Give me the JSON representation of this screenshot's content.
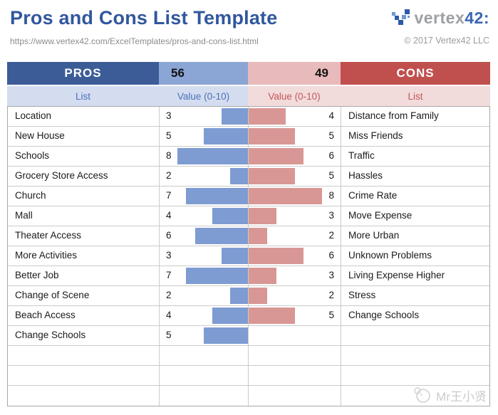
{
  "header": {
    "title": "Pros and Cons List Template",
    "url": "https://www.vertex42.com/ExcelTemplates/pros-and-cons-list.html",
    "logo": {
      "brand_gray": "vertex",
      "brand_blue": "42:"
    },
    "copyright": "© 2017 Vertex42 LLC"
  },
  "table": {
    "pros_header": "PROS",
    "pros_total": "56",
    "cons_total": "49",
    "cons_header": "CONS",
    "pros_list_label": "List",
    "pros_value_label": "Value (0-10)",
    "cons_value_label": "Value (0-10)",
    "cons_list_label": "List",
    "max_value": 10,
    "rows": [
      {
        "pro": "Location",
        "pro_value": 3,
        "con_value": 4,
        "con": "Distance from Family"
      },
      {
        "pro": "New House",
        "pro_value": 5,
        "con_value": 5,
        "con": "Miss Friends"
      },
      {
        "pro": "Schools",
        "pro_value": 8,
        "con_value": 6,
        "con": "Traffic"
      },
      {
        "pro": "Grocery Store Access",
        "pro_value": 2,
        "con_value": 5,
        "con": "Hassles"
      },
      {
        "pro": "Church",
        "pro_value": 7,
        "con_value": 8,
        "con": "Crime Rate"
      },
      {
        "pro": "Mall",
        "pro_value": 4,
        "con_value": 3,
        "con": "Move Expense"
      },
      {
        "pro": "Theater Access",
        "pro_value": 6,
        "con_value": 2,
        "con": "More Urban"
      },
      {
        "pro": "More Activities",
        "pro_value": 3,
        "con_value": 6,
        "con": "Unknown Problems"
      },
      {
        "pro": "Better Job",
        "pro_value": 7,
        "con_value": 3,
        "con": "Living Expense Higher"
      },
      {
        "pro": "Change of Scene",
        "pro_value": 2,
        "con_value": 2,
        "con": "Stress"
      },
      {
        "pro": "Beach Access",
        "pro_value": 4,
        "con_value": 5,
        "con": "Change Schools"
      },
      {
        "pro": "Change Schools",
        "pro_value": 5,
        "con_value": null,
        "con": ""
      },
      {
        "pro": "",
        "pro_value": null,
        "con_value": null,
        "con": ""
      },
      {
        "pro": "",
        "pro_value": null,
        "con_value": null,
        "con": ""
      },
      {
        "pro": "",
        "pro_value": null,
        "con_value": null,
        "con": ""
      }
    ]
  },
  "watermark": {
    "text": "Mr王小贤"
  },
  "colors": {
    "title_blue": "#31579E",
    "pros_header_bg": "#3C5C97",
    "pros_total_bg": "#8BA5D5",
    "cons_total_bg": "#E9BABB",
    "cons_header_bg": "#C0504D",
    "pros_subhead_bg": "#D4DDF0",
    "cons_subhead_bg": "#F2DBDB",
    "pros_bar": "#7E9CD2",
    "cons_bar": "#D89795",
    "gridline": "#CBCBCB"
  },
  "chart_data": {
    "type": "bar",
    "title": "Pros and Cons List Template",
    "xlabel": "Value (0-10)",
    "xlim": [
      0,
      10
    ],
    "series": [
      {
        "name": "Pros",
        "categories": [
          "Location",
          "New House",
          "Schools",
          "Grocery Store Access",
          "Church",
          "Mall",
          "Theater Access",
          "More Activities",
          "Better Job",
          "Change of Scene",
          "Beach Access",
          "Change Schools"
        ],
        "values": [
          3,
          5,
          8,
          2,
          7,
          4,
          6,
          3,
          7,
          2,
          4,
          5
        ],
        "total": 56
      },
      {
        "name": "Cons",
        "categories": [
          "Distance from Family",
          "Miss Friends",
          "Traffic",
          "Hassles",
          "Crime Rate",
          "Move Expense",
          "More Urban",
          "Unknown Problems",
          "Living Expense Higher",
          "Stress",
          "Change Schools"
        ],
        "values": [
          4,
          5,
          6,
          5,
          8,
          3,
          2,
          6,
          3,
          2,
          5
        ],
        "total": 49
      }
    ]
  }
}
